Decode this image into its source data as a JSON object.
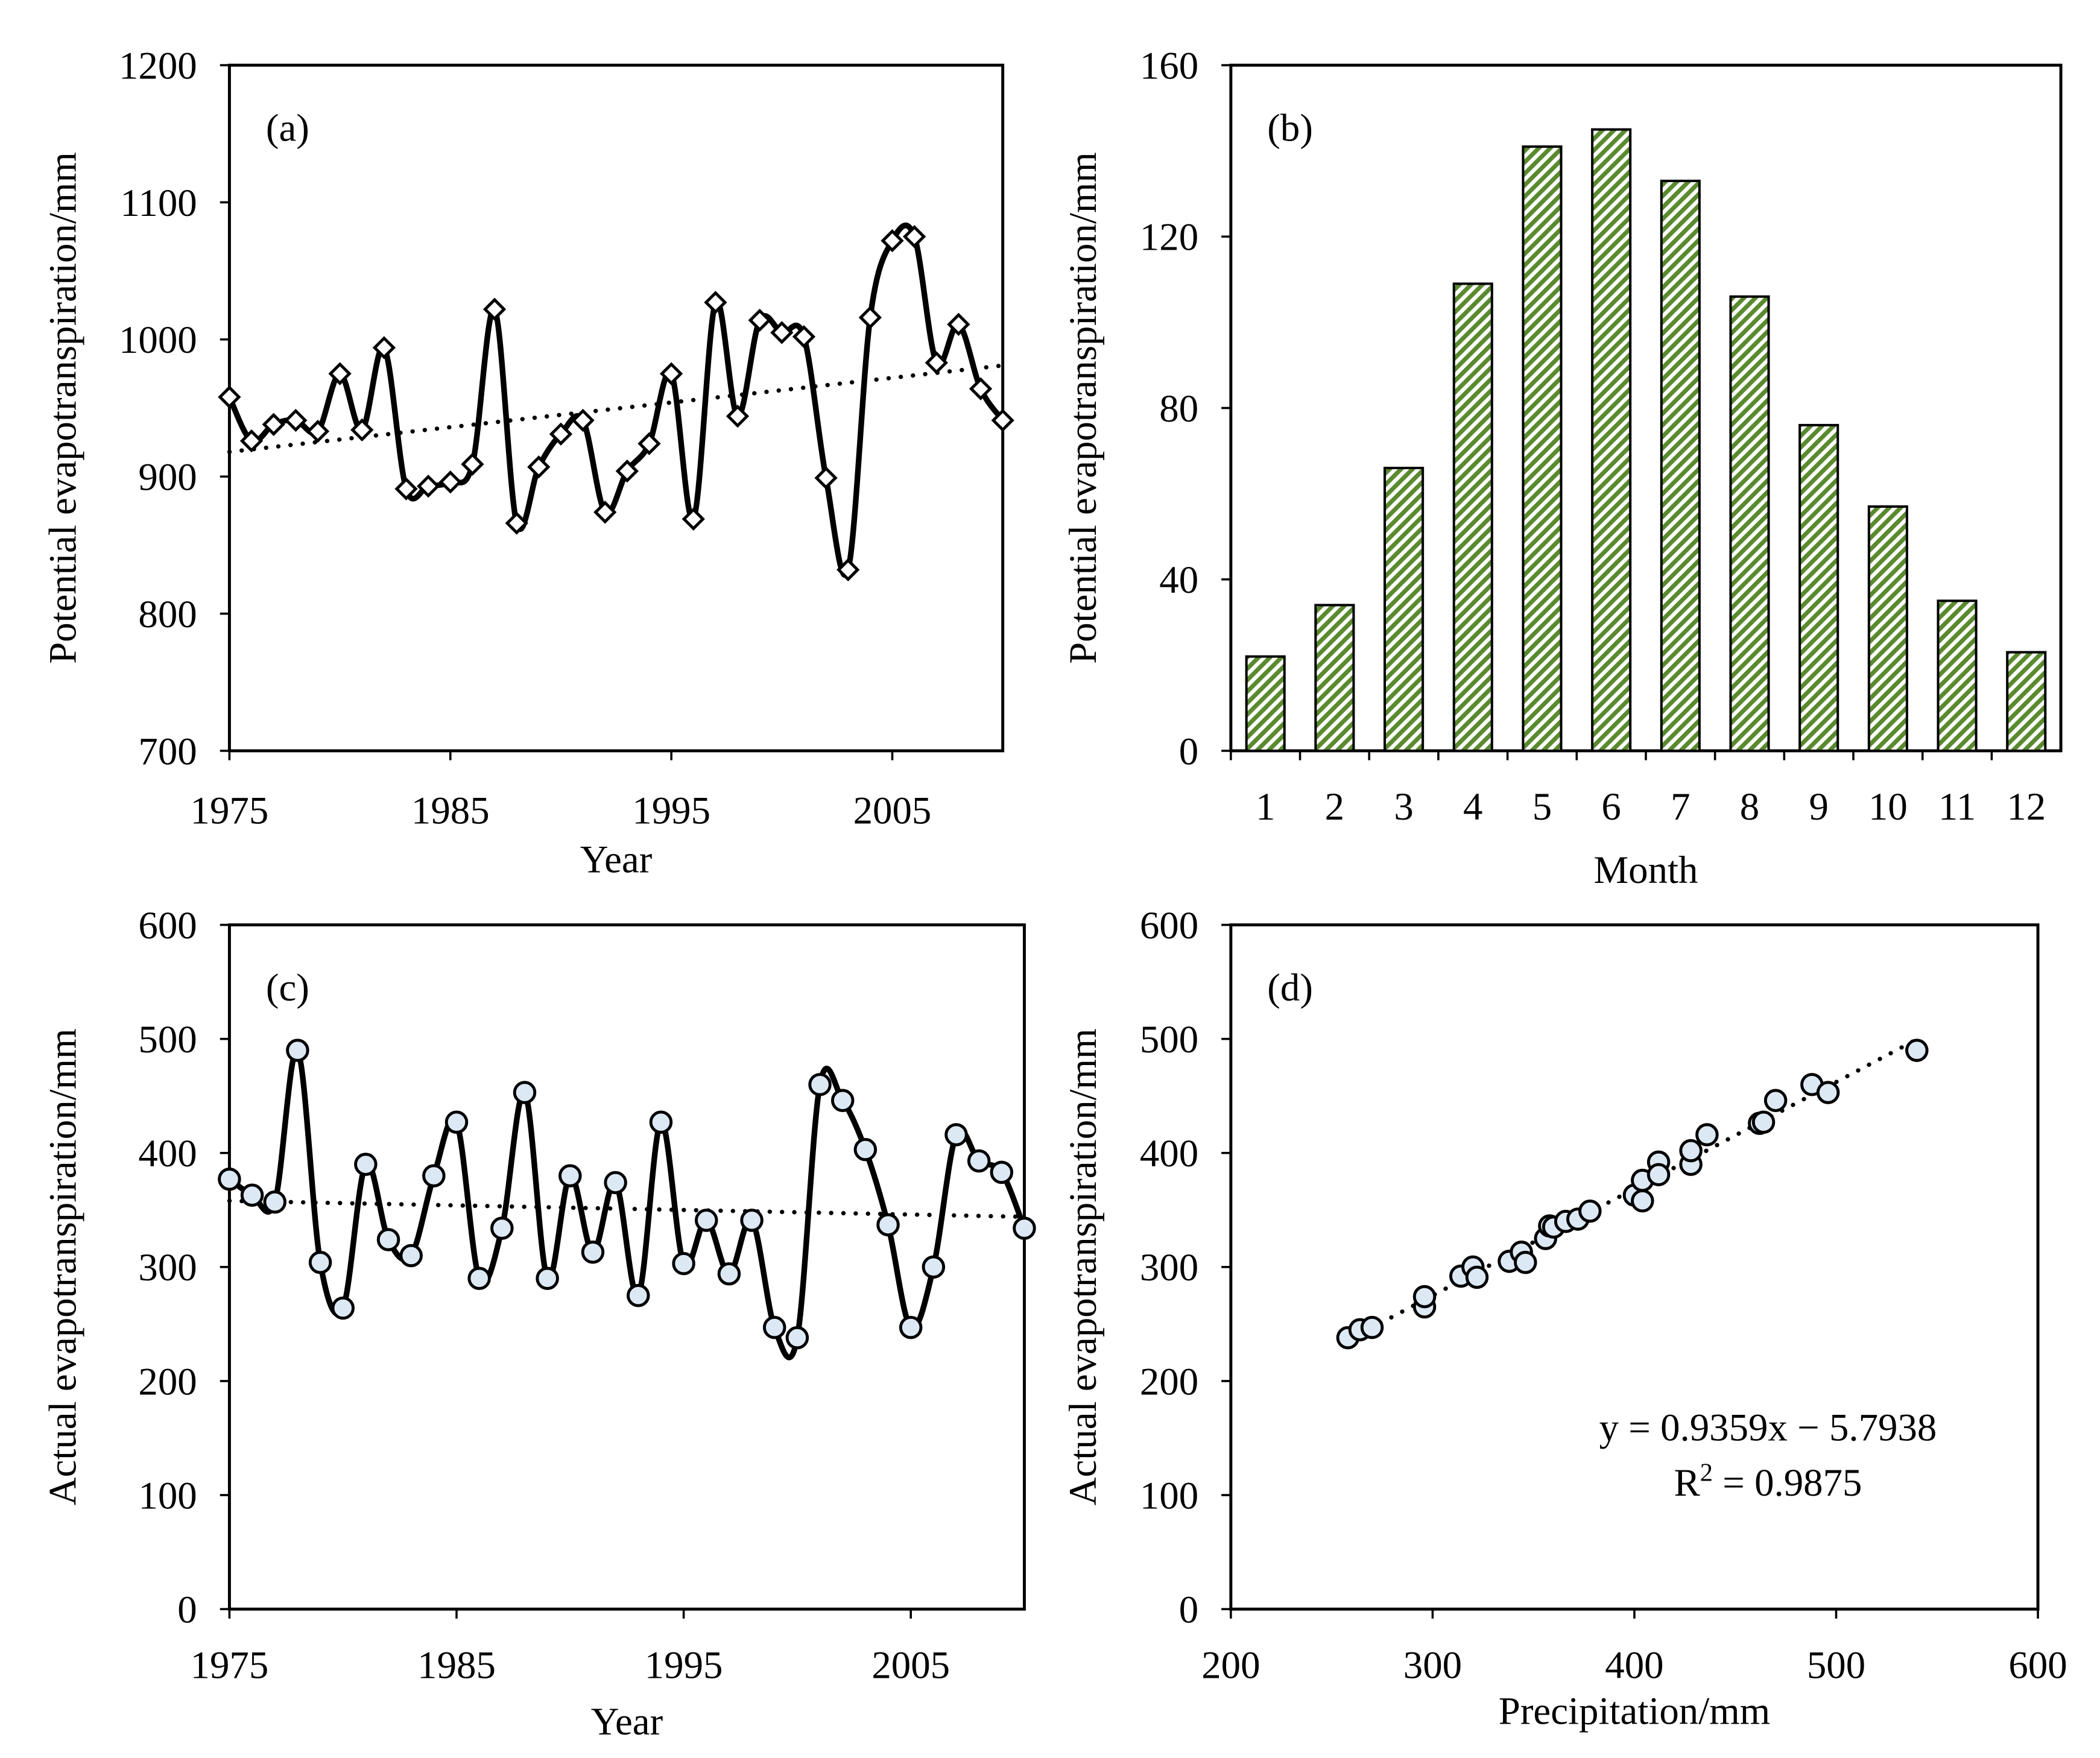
{
  "chart_data": [
    {
      "id": "a",
      "type": "line",
      "panel_label": "(a)",
      "xlabel": "Year",
      "ylabel": "Potential evapotranspiration/mm",
      "xlim": [
        1975,
        2010
      ],
      "ylim": [
        700,
        1200
      ],
      "xticks": [
        "1975",
        "1985",
        "1995",
        "2005"
      ],
      "yticks": [
        "700",
        "800",
        "900",
        "1000",
        "1100",
        "1200"
      ],
      "x": [
        1975,
        1976,
        1977,
        1978,
        1979,
        1980,
        1981,
        1982,
        1983,
        1984,
        1985,
        1986,
        1987,
        1988,
        1989,
        1990,
        1991,
        1992,
        1993,
        1994,
        1995,
        1996,
        1997,
        1998,
        1999,
        2000,
        2001,
        2002,
        2003,
        2004,
        2005,
        2006,
        2007,
        2008,
        2009,
        2010
      ],
      "series": [
        {
          "name": "Potential evapotranspiration",
          "marker": "diamond",
          "values": [
            958,
            926,
            938,
            941,
            933,
            975,
            934,
            994,
            891,
            893,
            896,
            909,
            1022,
            866,
            907,
            931,
            941,
            874,
            904,
            924,
            975,
            869,
            1027,
            944,
            1014,
            1005,
            1002,
            899,
            832,
            1016,
            1072,
            1075,
            983,
            1011,
            964,
            941
          ]
        }
      ],
      "trend": {
        "start": [
          1975,
          918
        ],
        "end": [
          2010,
          981
        ]
      }
    },
    {
      "id": "b",
      "type": "bar",
      "panel_label": "(b)",
      "xlabel": "Month",
      "ylabel": "Potential evapotranspiration/mm",
      "ylim": [
        0,
        160
      ],
      "yticks": [
        "0",
        "40",
        "80",
        "120",
        "160"
      ],
      "categories": [
        "1",
        "2",
        "3",
        "4",
        "5",
        "6",
        "7",
        "8",
        "9",
        "10",
        "11",
        "12"
      ],
      "values": [
        22,
        34,
        66,
        109,
        141,
        145,
        133,
        106,
        76,
        57,
        35,
        23
      ],
      "bar_color": "#5a8a2e"
    },
    {
      "id": "c",
      "type": "line",
      "panel_label": "(c)",
      "xlabel": "Year",
      "ylabel": "Actual evapotranspiration/mm",
      "xlim": [
        1975,
        2010
      ],
      "ylim": [
        0,
        600
      ],
      "xticks": [
        "1975",
        "1985",
        "1995",
        "2005"
      ],
      "yticks": [
        "0",
        "100",
        "200",
        "300",
        "400",
        "500",
        "600"
      ],
      "x": [
        1975,
        1976,
        1977,
        1978,
        1979,
        1980,
        1981,
        1982,
        1983,
        1984,
        1985,
        1986,
        1987,
        1988,
        1989,
        1990,
        1991,
        1992,
        1993,
        1994,
        1995,
        1996,
        1997,
        1998,
        1999,
        2000,
        2001,
        2002,
        2003,
        2004,
        2005,
        2006,
        2007,
        2008,
        2009,
        2010
      ],
      "series": [
        {
          "name": "Actual evapotranspiration",
          "marker": "circle",
          "marker_fill": "#dce9f5",
          "values": [
            377,
            363,
            357,
            490,
            304,
            264,
            390,
            324,
            310,
            380,
            427,
            290,
            334,
            453,
            290,
            380,
            313,
            374,
            275,
            427,
            303,
            341,
            294,
            341,
            247,
            238,
            460,
            446,
            403,
            337,
            247,
            300,
            416,
            393,
            383,
            334
          ]
        }
      ],
      "trend": {
        "start": [
          1975,
          358
        ],
        "end": [
          2010,
          344
        ]
      }
    },
    {
      "id": "d",
      "type": "scatter",
      "panel_label": "(d)",
      "xlabel": "Precipitation/mm",
      "ylabel": "Actual evapotranspiration/mm",
      "xlim": [
        200,
        600
      ],
      "ylim": [
        0,
        600
      ],
      "xticks": [
        "200",
        "300",
        "400",
        "500",
        "600"
      ],
      "yticks": [
        "0",
        "100",
        "200",
        "300",
        "400",
        "500",
        "600"
      ],
      "points": [
        [
          258,
          238
        ],
        [
          264,
          245
        ],
        [
          270,
          247
        ],
        [
          296,
          265
        ],
        [
          296,
          274
        ],
        [
          314,
          292
        ],
        [
          320,
          300
        ],
        [
          322,
          291
        ],
        [
          338,
          305
        ],
        [
          344,
          313
        ],
        [
          346,
          304
        ],
        [
          356,
          325
        ],
        [
          358,
          336
        ],
        [
          360,
          335
        ],
        [
          366,
          340
        ],
        [
          372,
          342
        ],
        [
          378,
          349
        ],
        [
          400,
          363
        ],
        [
          404,
          376
        ],
        [
          404,
          358
        ],
        [
          412,
          392
        ],
        [
          412,
          381
        ],
        [
          428,
          390
        ],
        [
          428,
          402
        ],
        [
          436,
          416
        ],
        [
          462,
          426
        ],
        [
          464,
          427
        ],
        [
          470,
          446
        ],
        [
          488,
          460
        ],
        [
          496,
          453
        ],
        [
          540,
          490
        ]
      ],
      "marker_fill": "#dce9f5",
      "fit": {
        "slope": 0.9359,
        "intercept": -5.7938,
        "xrange": [
          258,
          540
        ]
      },
      "equation_line1": "y = 0.9359x − 5.7938",
      "equation_line2_prefix": "R",
      "equation_line2_sup": "2",
      "equation_line2_value": " = 0.9875"
    }
  ]
}
